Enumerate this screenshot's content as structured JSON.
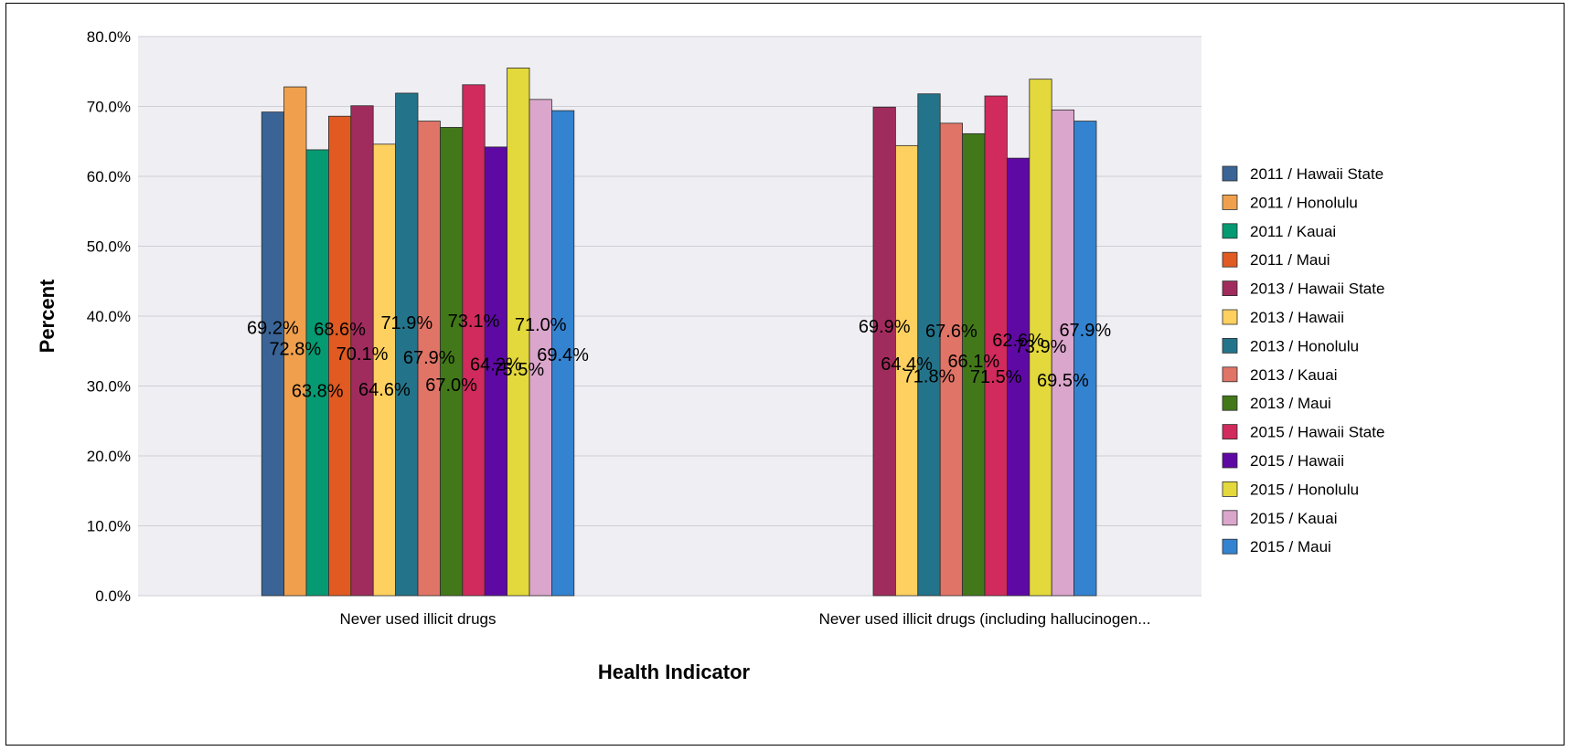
{
  "chart_data": {
    "type": "bar",
    "title": "",
    "xlabel": "Health Indicator",
    "ylabel": "Percent",
    "ylim": [
      0,
      80
    ],
    "y_ticks": [
      "0.0%",
      "10.0%",
      "20.0%",
      "30.0%",
      "40.0%",
      "50.0%",
      "60.0%",
      "70.0%",
      "80.0%"
    ],
    "categories": [
      "Never used illicit drugs",
      "Never used illicit drugs (including hallucinogen..."
    ],
    "grid": true,
    "legend_position": "right",
    "series": [
      {
        "name": "2011 / Hawaii State",
        "color": "#3a6496",
        "values": [
          69.2,
          null
        ],
        "labels": [
          "69.2%",
          ""
        ]
      },
      {
        "name": "2011 / Honolulu",
        "color": "#f0a04d",
        "values": [
          72.8,
          null
        ],
        "labels": [
          "72.8%",
          ""
        ]
      },
      {
        "name": "2011 / Kauai",
        "color": "#059a72",
        "values": [
          63.8,
          null
        ],
        "labels": [
          "63.8%",
          ""
        ]
      },
      {
        "name": "2011 / Maui",
        "color": "#e05a22",
        "values": [
          68.6,
          null
        ],
        "labels": [
          "68.6%",
          ""
        ]
      },
      {
        "name": "2013 / Hawaii State",
        "color": "#a02c5d",
        "values": [
          70.1,
          69.9
        ],
        "labels": [
          "70.1%",
          "69.9%"
        ]
      },
      {
        "name": "2013 / Hawaii",
        "color": "#fdd05f",
        "values": [
          64.6,
          64.4
        ],
        "labels": [
          "64.6%",
          "64.4%"
        ]
      },
      {
        "name": "2013 / Honolulu",
        "color": "#23748a",
        "values": [
          71.9,
          71.8
        ],
        "labels": [
          "71.9%",
          "71.8%"
        ]
      },
      {
        "name": "2013 / Kauai",
        "color": "#e07466",
        "values": [
          67.9,
          67.6
        ],
        "labels": [
          "67.9%",
          "67.6%"
        ]
      },
      {
        "name": "2013 / Maui",
        "color": "#427819",
        "values": [
          67.0,
          66.1
        ],
        "labels": [
          "67.0%",
          "66.1%"
        ]
      },
      {
        "name": "2015 / Hawaii State",
        "color": "#d12a5c",
        "values": [
          73.1,
          71.5
        ],
        "labels": [
          "73.1%",
          "71.5%"
        ]
      },
      {
        "name": "2015 / Hawaii",
        "color": "#5e09a4",
        "values": [
          64.2,
          62.6
        ],
        "labels": [
          "64.2%",
          "62.6%"
        ]
      },
      {
        "name": "2015 / Honolulu",
        "color": "#e3d83c",
        "values": [
          75.5,
          73.9
        ],
        "labels": [
          "75.5%",
          "73.9%"
        ]
      },
      {
        "name": "2015 / Kauai",
        "color": "#dba6cb",
        "values": [
          71.0,
          69.5
        ],
        "labels": [
          "71.0%",
          "69.5%"
        ]
      },
      {
        "name": "2015 / Maui",
        "color": "#3383d1",
        "values": [
          69.4,
          67.9
        ],
        "labels": [
          "69.4%",
          "67.9%"
        ]
      }
    ]
  }
}
